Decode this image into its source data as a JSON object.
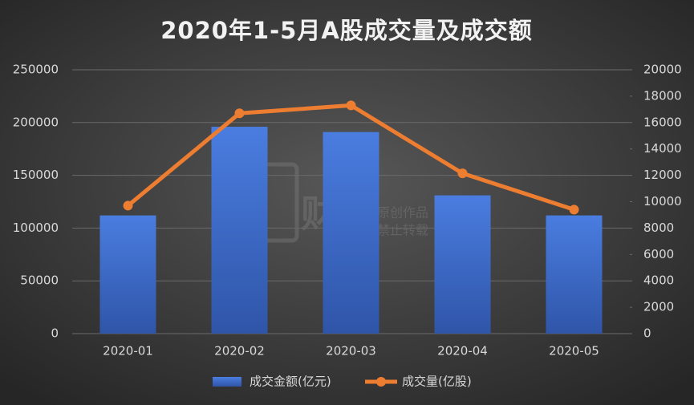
{
  "chart_data": {
    "type": "bar",
    "title": "2020年1-5月A股成交量及成交额",
    "categories": [
      "2020-01",
      "2020-02",
      "2020-03",
      "2020-04",
      "2020-05"
    ],
    "series": [
      {
        "name": "成交金额(亿元)",
        "type": "bar",
        "color": "#4472c4",
        "values": [
          112000,
          196000,
          191000,
          131000,
          112000
        ]
      },
      {
        "name": "成交量(亿股)",
        "type": "line",
        "axis": "y2",
        "color": "#ed7d31",
        "values": [
          9700,
          16700,
          17300,
          12150,
          9400
        ]
      }
    ],
    "ylim": [
      0,
      250000
    ],
    "yticks": [
      0,
      50000,
      100000,
      150000,
      200000,
      250000
    ],
    "y2lim": [
      0,
      20000
    ],
    "y2ticks": [
      0,
      2000,
      4000,
      6000,
      8000,
      10000,
      12000,
      14000,
      16000,
      18000,
      20000
    ],
    "grid": true,
    "legend": "bottom",
    "watermark": {
      "text": "财经",
      "lines": [
        "原创作品",
        "禁止转载"
      ]
    }
  }
}
